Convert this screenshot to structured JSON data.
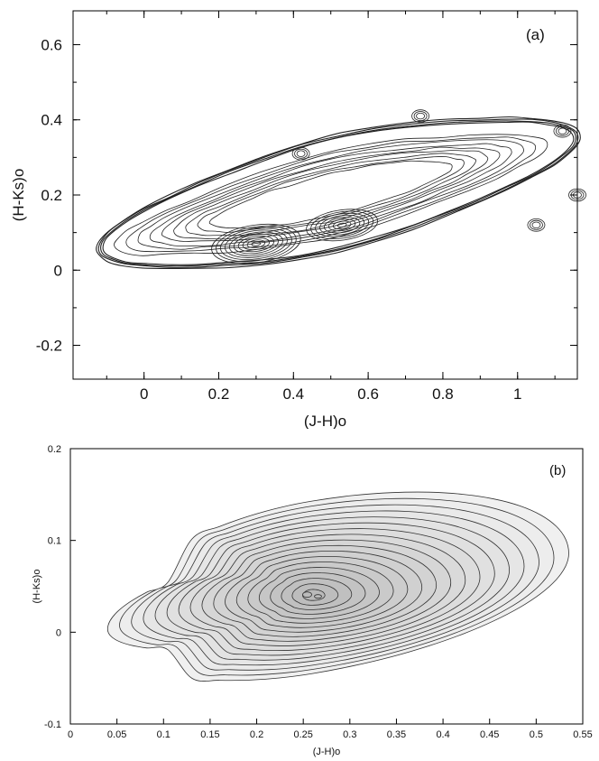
{
  "chart_data": [
    {
      "type": "contour",
      "panel_label": "(a)",
      "xlabel": "(J-H)o",
      "ylabel": "(H-Ks)o",
      "xlim": [
        -0.19,
        1.16
      ],
      "ylim": [
        -0.29,
        0.69
      ],
      "xticks": [
        0,
        0.2,
        0.4,
        0.6,
        0.8,
        1
      ],
      "yticks": [
        -0.2,
        0,
        0.2,
        0.4,
        0.6
      ],
      "xtick_labels": [
        "0",
        "0.2",
        "0.4",
        "0.6",
        "0.8",
        "1"
      ],
      "ytick_labels": [
        "-0.2",
        "0",
        "0.2",
        "0.4",
        "0.6"
      ],
      "density_peaks": [
        {
          "x": 0.3,
          "y": 0.07
        },
        {
          "x": 0.53,
          "y": 0.12
        }
      ],
      "isolated_clumps": [
        {
          "x": 0.42,
          "y": 0.31
        },
        {
          "x": 0.74,
          "y": 0.41
        },
        {
          "x": 1.12,
          "y": 0.37
        },
        {
          "x": 1.05,
          "y": 0.12
        },
        {
          "x": 1.16,
          "y": 0.2
        }
      ]
    },
    {
      "type": "contour",
      "panel_label": "(b)",
      "xlabel": "(J-H)o",
      "ylabel": "(H-Ks)o",
      "xlim": [
        0,
        0.55
      ],
      "ylim": [
        -0.1,
        0.2
      ],
      "xticks": [
        0,
        0.05,
        0.1,
        0.15,
        0.2,
        0.25,
        0.3,
        0.35,
        0.4,
        0.45,
        0.5,
        0.55
      ],
      "yticks": [
        -0.1,
        0,
        0.1,
        0.2
      ],
      "xtick_labels": [
        "0",
        "0.05",
        "0.1",
        "0.15",
        "0.2",
        "0.25",
        "0.3",
        "0.35",
        "0.4",
        "0.45",
        "0.5",
        "0.55"
      ],
      "ytick_labels": [
        "-0.1",
        "0",
        "0.1",
        "0.2"
      ],
      "density_peak": {
        "x": 0.26,
        "y": 0.04
      },
      "outer_contour_extent": {
        "x": [
          0.04,
          0.535
        ],
        "y": [
          -0.045,
          0.143
        ]
      }
    }
  ]
}
